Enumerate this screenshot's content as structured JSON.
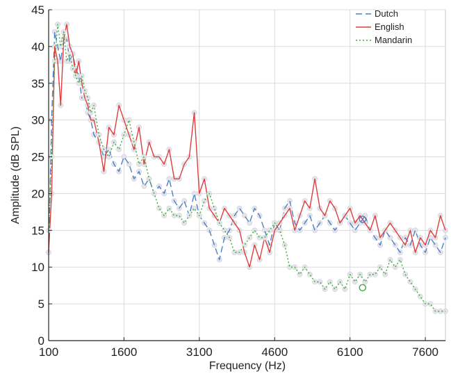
{
  "chart_data": {
    "type": "line",
    "xlabel": "Frequency (Hz)",
    "ylabel": "Amplitude (dB SPL)",
    "xlim": [
      100,
      8000
    ],
    "ylim": [
      0,
      45
    ],
    "xticks": [
      100,
      1600,
      3100,
      4600,
      6100,
      7600
    ],
    "yticks": [
      0,
      5,
      10,
      15,
      20,
      25,
      30,
      35,
      40,
      45
    ],
    "grid": true,
    "legend_position": "top-right",
    "series": [
      {
        "name": "Dutch",
        "style": "dashed",
        "color": "#4a7fc7",
        "x": [
          100,
          160,
          220,
          280,
          340,
          400,
          460,
          520,
          580,
          640,
          700,
          760,
          820,
          880,
          940,
          1000,
          1100,
          1200,
          1300,
          1400,
          1500,
          1600,
          1700,
          1800,
          1900,
          2000,
          2100,
          2200,
          2300,
          2400,
          2500,
          2600,
          2700,
          2800,
          2900,
          3000,
          3100,
          3200,
          3300,
          3400,
          3500,
          3600,
          3700,
          3800,
          3900,
          4000,
          4100,
          4200,
          4300,
          4400,
          4500,
          4600,
          4700,
          4800,
          4900,
          5000,
          5100,
          5200,
          5300,
          5400,
          5500,
          5600,
          5700,
          5800,
          5900,
          6000,
          6100,
          6200,
          6300,
          6400,
          6500,
          6600,
          6700,
          6800,
          6900,
          7000,
          7100,
          7200,
          7300,
          7400,
          7500,
          7600,
          7700,
          7800,
          7900,
          8000
        ],
        "values": [
          12,
          30,
          42,
          40,
          38,
          41,
          41,
          38,
          39,
          37,
          36,
          33,
          33,
          31,
          30,
          28,
          27,
          25,
          26,
          24,
          23,
          25,
          24,
          22,
          23,
          21,
          22,
          20,
          21,
          20,
          22,
          19,
          18,
          19,
          17,
          20,
          17,
          16,
          15,
          13,
          11,
          14,
          15,
          17,
          18,
          17,
          16,
          18,
          17,
          15,
          13,
          16,
          15,
          18,
          19,
          16,
          15,
          16,
          17,
          15,
          16,
          17,
          16,
          15,
          16,
          17,
          16,
          15,
          16,
          17,
          15,
          14,
          13,
          15,
          14,
          13,
          12,
          14,
          13,
          15,
          13,
          12,
          14,
          13,
          12,
          14
        ]
      },
      {
        "name": "English",
        "style": "solid",
        "color": "#e03c3c",
        "x": [
          100,
          160,
          220,
          280,
          340,
          400,
          460,
          520,
          580,
          640,
          700,
          760,
          820,
          880,
          940,
          1000,
          1100,
          1200,
          1300,
          1400,
          1500,
          1600,
          1700,
          1800,
          1900,
          2000,
          2100,
          2200,
          2300,
          2400,
          2500,
          2600,
          2700,
          2800,
          2900,
          3000,
          3100,
          3200,
          3300,
          3400,
          3500,
          3600,
          3700,
          3800,
          3900,
          4000,
          4100,
          4200,
          4300,
          4400,
          4500,
          4600,
          4700,
          4800,
          4900,
          5000,
          5100,
          5200,
          5300,
          5400,
          5500,
          5600,
          5700,
          5800,
          5900,
          6000,
          6100,
          6200,
          6300,
          6400,
          6500,
          6600,
          6700,
          6800,
          6900,
          7000,
          7100,
          7200,
          7300,
          7400,
          7500,
          7600,
          7700,
          7800,
          7900,
          8000
        ],
        "values": [
          12,
          20,
          40,
          38,
          32,
          41,
          43,
          40,
          39,
          36,
          38,
          35,
          33,
          32,
          30,
          30,
          27,
          23,
          29,
          28,
          32,
          30,
          28,
          26,
          29,
          24,
          27,
          25,
          25,
          24,
          26,
          22,
          22,
          24,
          25,
          31,
          20,
          22,
          18,
          17,
          16,
          18,
          17,
          16,
          15,
          12,
          10,
          13,
          11,
          14,
          12,
          15,
          16,
          17,
          18,
          15,
          17,
          19,
          18,
          22,
          18,
          17,
          19,
          18,
          16,
          17,
          18,
          16,
          17,
          16,
          15,
          17,
          14,
          15,
          16,
          15,
          14,
          13,
          15,
          12,
          14,
          13,
          15,
          14,
          17,
          15
        ]
      },
      {
        "name": "Mandarin",
        "style": "dotted",
        "color": "#3aaa35",
        "x": [
          100,
          160,
          220,
          280,
          340,
          400,
          460,
          520,
          580,
          640,
          700,
          760,
          820,
          880,
          940,
          1000,
          1100,
          1200,
          1300,
          1400,
          1500,
          1600,
          1700,
          1800,
          1900,
          2000,
          2100,
          2200,
          2300,
          2400,
          2500,
          2600,
          2700,
          2800,
          2900,
          3000,
          3100,
          3200,
          3300,
          3400,
          3500,
          3600,
          3700,
          3800,
          3900,
          4000,
          4100,
          4200,
          4300,
          4400,
          4500,
          4600,
          4700,
          4800,
          4900,
          5000,
          5100,
          5200,
          5300,
          5400,
          5500,
          5600,
          5700,
          5800,
          5900,
          6000,
          6100,
          6200,
          6300,
          6400,
          6500,
          6600,
          6700,
          6800,
          6900,
          7000,
          7100,
          7200,
          7300,
          7400,
          7500,
          7600,
          7700,
          7800,
          7900,
          8000
        ],
        "values": [
          15,
          25,
          38,
          43,
          40,
          42,
          38,
          39,
          37,
          36,
          35,
          36,
          34,
          33,
          31,
          32,
          28,
          26,
          25,
          27,
          26,
          28,
          30,
          27,
          24,
          25,
          22,
          20,
          18,
          17,
          18,
          17,
          17,
          16,
          17,
          18,
          17,
          19,
          20,
          18,
          16,
          15,
          14,
          12,
          12,
          13,
          14,
          15,
          14,
          14,
          15,
          16,
          15,
          13,
          10,
          10,
          9,
          10,
          9,
          8,
          8,
          7,
          8,
          7,
          8,
          7,
          9,
          8,
          9,
          8,
          9,
          9,
          10,
          9,
          11,
          10,
          11,
          9,
          8,
          7,
          6,
          5,
          5,
          4,
          4,
          4
        ]
      }
    ],
    "annotations": [
      {
        "series": "Dutch",
        "marker": "open-circle",
        "x": 6350,
        "y": 16.5
      },
      {
        "series": "Mandarin",
        "marker": "open-circle",
        "x": 6350,
        "y": 7.2
      }
    ]
  }
}
